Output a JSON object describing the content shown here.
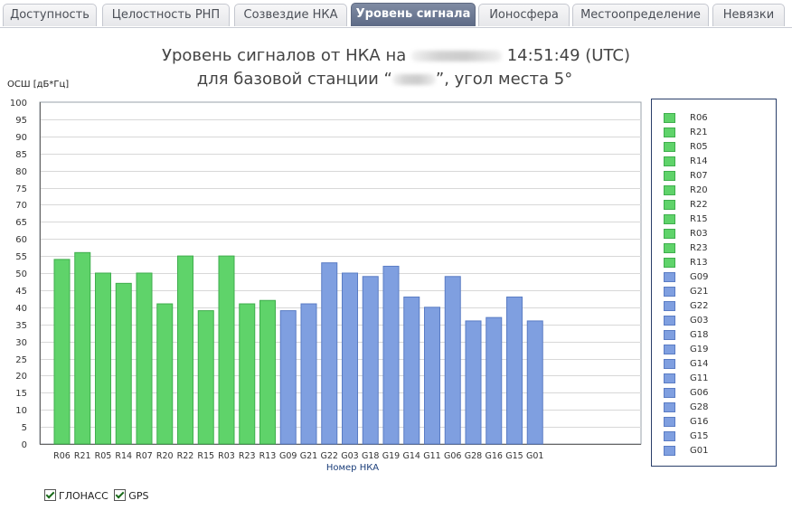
{
  "tabs": [
    {
      "label": "Доступность",
      "active": false
    },
    {
      "label": "Целостность РНП",
      "active": false
    },
    {
      "label": "Созвездие НКА",
      "active": false
    },
    {
      "label": "Уровень сигнала",
      "active": true
    },
    {
      "label": "Ионосфера",
      "active": false
    },
    {
      "label": "Местоопределение",
      "active": false
    },
    {
      "label": "Невязки",
      "active": false
    }
  ],
  "title": {
    "line1_prefix": "Уровень сигналов от НКА на",
    "line1_suffix": "14:51:49 (UTC)",
    "line2_prefix": "для базовой станции “",
    "line2_suffix": "”, угол места 5°"
  },
  "colors": {
    "glonass": "#5fd36a",
    "gps": "#7f9fe0",
    "glonass_border": "#3fae4d",
    "gps_border": "#5a7cc4"
  },
  "chart_data": {
    "type": "bar",
    "ylabel": "ОСШ [дБ*Гц]",
    "xlabel": "Номер НКА",
    "ylim": [
      0,
      100
    ],
    "yticks": [
      0,
      5,
      10,
      15,
      20,
      25,
      30,
      35,
      40,
      45,
      50,
      55,
      60,
      65,
      70,
      75,
      80,
      85,
      90,
      95,
      100
    ],
    "grid": true,
    "legend_position": "right",
    "categories": [
      "R06",
      "R21",
      "R05",
      "R14",
      "R07",
      "R20",
      "R22",
      "R15",
      "R03",
      "R23",
      "R13",
      "G09",
      "G21",
      "G22",
      "G03",
      "G18",
      "G19",
      "G14",
      "G11",
      "G06",
      "G28",
      "G16",
      "G15",
      "G01"
    ],
    "values": [
      54,
      56,
      50,
      47,
      50,
      41,
      55,
      39,
      55,
      41,
      42,
      39,
      41,
      53,
      50,
      49,
      52,
      43,
      40,
      49,
      36,
      37,
      43,
      36
    ],
    "system": [
      "glonass",
      "glonass",
      "glonass",
      "glonass",
      "glonass",
      "glonass",
      "glonass",
      "glonass",
      "glonass",
      "glonass",
      "glonass",
      "gps",
      "gps",
      "gps",
      "gps",
      "gps",
      "gps",
      "gps",
      "gps",
      "gps",
      "gps",
      "gps",
      "gps",
      "gps"
    ]
  },
  "filters": [
    {
      "label": "ГЛОНАСС",
      "checked": true
    },
    {
      "label": "GPS",
      "checked": true
    }
  ]
}
